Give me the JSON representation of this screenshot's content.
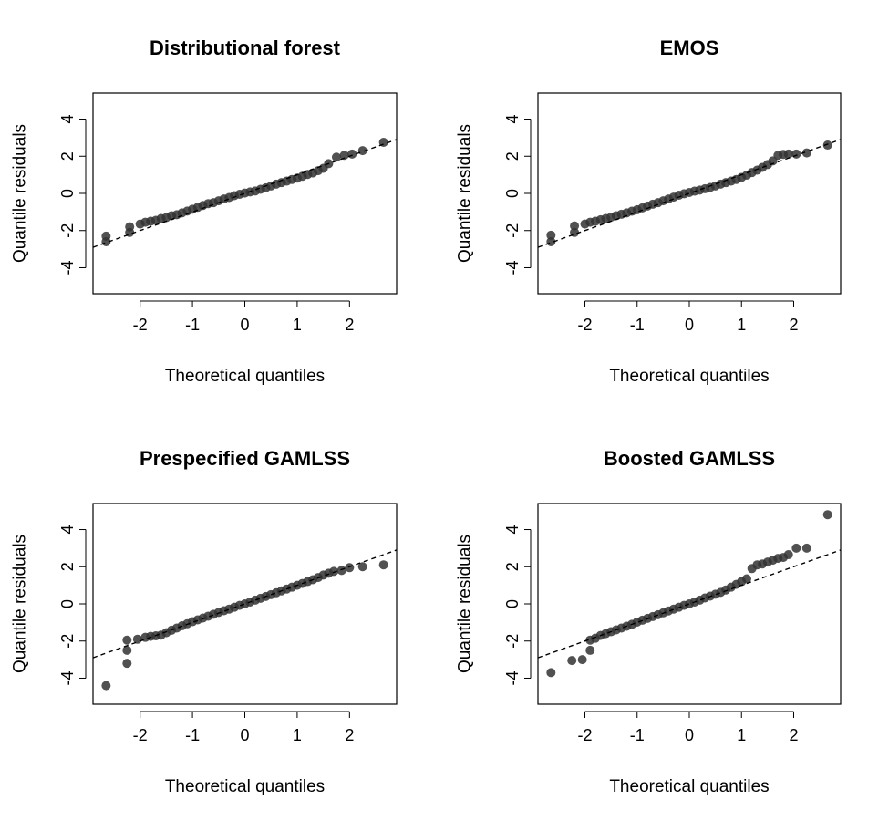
{
  "chart_data": [
    {
      "type": "scatter",
      "title": "Distributional forest",
      "xlabel": "Theoretical quantiles",
      "ylabel": "Quantile residuals",
      "xlim": [
        -2.9,
        2.9
      ],
      "ylim": [
        -5.4,
        5.4
      ],
      "xticks": [
        "-2",
        "-1",
        "0",
        "1",
        "2"
      ],
      "yticks": [
        "-4",
        "-2",
        "0",
        "2",
        "4"
      ],
      "reference_line": {
        "slope": 1.0,
        "intercept": 0.0
      },
      "series": [
        {
          "name": "residuals",
          "points": [
            [
              -2.65,
              -2.3
            ],
            [
              -2.65,
              -2.6
            ],
            [
              -2.2,
              -1.8
            ],
            [
              -2.2,
              -2.1
            ],
            [
              -2.0,
              -1.65
            ],
            [
              -1.9,
              -1.55
            ],
            [
              -1.8,
              -1.5
            ],
            [
              -1.7,
              -1.45
            ],
            [
              -1.6,
              -1.35
            ],
            [
              -1.5,
              -1.3
            ],
            [
              -1.4,
              -1.2
            ],
            [
              -1.3,
              -1.15
            ],
            [
              -1.2,
              -1.05
            ],
            [
              -1.1,
              -0.95
            ],
            [
              -1.0,
              -0.85
            ],
            [
              -0.9,
              -0.75
            ],
            [
              -0.8,
              -0.65
            ],
            [
              -0.7,
              -0.55
            ],
            [
              -0.6,
              -0.5
            ],
            [
              -0.5,
              -0.4
            ],
            [
              -0.4,
              -0.3
            ],
            [
              -0.3,
              -0.22
            ],
            [
              -0.2,
              -0.12
            ],
            [
              -0.1,
              -0.05
            ],
            [
              0.0,
              0.02
            ],
            [
              0.1,
              0.08
            ],
            [
              0.2,
              0.13
            ],
            [
              0.3,
              0.22
            ],
            [
              0.4,
              0.3
            ],
            [
              0.5,
              0.4
            ],
            [
              0.6,
              0.5
            ],
            [
              0.7,
              0.58
            ],
            [
              0.8,
              0.66
            ],
            [
              0.9,
              0.75
            ],
            [
              1.0,
              0.82
            ],
            [
              1.1,
              0.92
            ],
            [
              1.2,
              1.02
            ],
            [
              1.3,
              1.1
            ],
            [
              1.4,
              1.22
            ],
            [
              1.5,
              1.35
            ],
            [
              1.6,
              1.6
            ],
            [
              1.75,
              1.95
            ],
            [
              1.9,
              2.05
            ],
            [
              2.05,
              2.12
            ],
            [
              2.25,
              2.3
            ],
            [
              2.65,
              2.75
            ]
          ]
        }
      ]
    },
    {
      "type": "scatter",
      "title": "EMOS",
      "xlabel": "Theoretical quantiles",
      "ylabel": "Quantile residuals",
      "xlim": [
        -2.9,
        2.9
      ],
      "ylim": [
        -5.4,
        5.4
      ],
      "xticks": [
        "-2",
        "-1",
        "0",
        "1",
        "2"
      ],
      "yticks": [
        "-4",
        "-2",
        "0",
        "2",
        "4"
      ],
      "reference_line": {
        "slope": 1.0,
        "intercept": 0.0
      },
      "series": [
        {
          "name": "residuals",
          "points": [
            [
              -2.65,
              -2.25
            ],
            [
              -2.65,
              -2.6
            ],
            [
              -2.2,
              -1.75
            ],
            [
              -2.2,
              -2.1
            ],
            [
              -2.0,
              -1.65
            ],
            [
              -1.9,
              -1.55
            ],
            [
              -1.8,
              -1.5
            ],
            [
              -1.7,
              -1.42
            ],
            [
              -1.6,
              -1.35
            ],
            [
              -1.5,
              -1.28
            ],
            [
              -1.4,
              -1.2
            ],
            [
              -1.3,
              -1.12
            ],
            [
              -1.2,
              -1.05
            ],
            [
              -1.1,
              -0.96
            ],
            [
              -1.0,
              -0.88
            ],
            [
              -0.9,
              -0.78
            ],
            [
              -0.8,
              -0.68
            ],
            [
              -0.7,
              -0.58
            ],
            [
              -0.6,
              -0.5
            ],
            [
              -0.5,
              -0.4
            ],
            [
              -0.4,
              -0.3
            ],
            [
              -0.3,
              -0.2
            ],
            [
              -0.2,
              -0.1
            ],
            [
              -0.1,
              -0.02
            ],
            [
              0.0,
              0.05
            ],
            [
              0.1,
              0.12
            ],
            [
              0.2,
              0.18
            ],
            [
              0.3,
              0.25
            ],
            [
              0.4,
              0.32
            ],
            [
              0.5,
              0.4
            ],
            [
              0.6,
              0.5
            ],
            [
              0.7,
              0.58
            ],
            [
              0.8,
              0.66
            ],
            [
              0.9,
              0.75
            ],
            [
              1.0,
              0.86
            ],
            [
              1.1,
              0.98
            ],
            [
              1.2,
              1.12
            ],
            [
              1.3,
              1.25
            ],
            [
              1.4,
              1.4
            ],
            [
              1.5,
              1.55
            ],
            [
              1.6,
              1.75
            ],
            [
              1.7,
              2.05
            ],
            [
              1.8,
              2.1
            ],
            [
              1.9,
              2.12
            ],
            [
              2.05,
              2.12
            ],
            [
              2.25,
              2.18
            ],
            [
              2.65,
              2.6
            ]
          ]
        }
      ]
    },
    {
      "type": "scatter",
      "title": "Prespecified GAMLSS",
      "xlabel": "Theoretical quantiles",
      "ylabel": "Quantile residuals",
      "xlim": [
        -2.9,
        2.9
      ],
      "ylim": [
        -5.4,
        5.4
      ],
      "xticks": [
        "-2",
        "-1",
        "0",
        "1",
        "2"
      ],
      "yticks": [
        "-4",
        "-2",
        "0",
        "2",
        "4"
      ],
      "reference_line": {
        "slope": 1.0,
        "intercept": 0.0
      },
      "series": [
        {
          "name": "residuals",
          "points": [
            [
              -2.65,
              -4.4
            ],
            [
              -2.25,
              -1.95
            ],
            [
              -2.25,
              -2.5
            ],
            [
              -2.25,
              -3.2
            ],
            [
              -2.05,
              -1.9
            ],
            [
              -1.9,
              -1.8
            ],
            [
              -1.8,
              -1.75
            ],
            [
              -1.7,
              -1.72
            ],
            [
              -1.6,
              -1.68
            ],
            [
              -1.5,
              -1.55
            ],
            [
              -1.4,
              -1.42
            ],
            [
              -1.3,
              -1.3
            ],
            [
              -1.2,
              -1.18
            ],
            [
              -1.1,
              -1.07
            ],
            [
              -1.0,
              -0.96
            ],
            [
              -0.9,
              -0.86
            ],
            [
              -0.8,
              -0.76
            ],
            [
              -0.7,
              -0.66
            ],
            [
              -0.6,
              -0.56
            ],
            [
              -0.5,
              -0.46
            ],
            [
              -0.4,
              -0.37
            ],
            [
              -0.3,
              -0.28
            ],
            [
              -0.2,
              -0.18
            ],
            [
              -0.1,
              -0.08
            ],
            [
              0.0,
              0.0
            ],
            [
              0.1,
              0.1
            ],
            [
              0.2,
              0.2
            ],
            [
              0.3,
              0.3
            ],
            [
              0.4,
              0.4
            ],
            [
              0.5,
              0.5
            ],
            [
              0.6,
              0.6
            ],
            [
              0.7,
              0.7
            ],
            [
              0.8,
              0.8
            ],
            [
              0.9,
              0.9
            ],
            [
              1.0,
              1.0
            ],
            [
              1.1,
              1.1
            ],
            [
              1.2,
              1.2
            ],
            [
              1.3,
              1.3
            ],
            [
              1.4,
              1.42
            ],
            [
              1.5,
              1.55
            ],
            [
              1.6,
              1.65
            ],
            [
              1.7,
              1.75
            ],
            [
              1.85,
              1.8
            ],
            [
              2.0,
              1.95
            ],
            [
              2.25,
              2.0
            ],
            [
              2.65,
              2.1
            ]
          ]
        }
      ]
    },
    {
      "type": "scatter",
      "title": "Boosted GAMLSS",
      "xlabel": "Theoretical quantiles",
      "ylabel": "Quantile residuals",
      "xlim": [
        -2.9,
        2.9
      ],
      "ylim": [
        -5.4,
        5.4
      ],
      "xticks": [
        "-2",
        "-1",
        "0",
        "1",
        "2"
      ],
      "yticks": [
        "-4",
        "-2",
        "0",
        "2",
        "4"
      ],
      "reference_line": {
        "slope": 1.0,
        "intercept": 0.0
      },
      "series": [
        {
          "name": "residuals",
          "points": [
            [
              -2.65,
              -3.7
            ],
            [
              -2.25,
              -3.05
            ],
            [
              -2.05,
              -3.0
            ],
            [
              -1.9,
              -2.5
            ],
            [
              -1.9,
              -1.95
            ],
            [
              -1.8,
              -1.85
            ],
            [
              -1.7,
              -1.7
            ],
            [
              -1.6,
              -1.6
            ],
            [
              -1.5,
              -1.5
            ],
            [
              -1.4,
              -1.4
            ],
            [
              -1.3,
              -1.3
            ],
            [
              -1.2,
              -1.2
            ],
            [
              -1.1,
              -1.1
            ],
            [
              -1.0,
              -0.98
            ],
            [
              -0.9,
              -0.88
            ],
            [
              -0.8,
              -0.78
            ],
            [
              -0.7,
              -0.68
            ],
            [
              -0.6,
              -0.58
            ],
            [
              -0.5,
              -0.48
            ],
            [
              -0.4,
              -0.38
            ],
            [
              -0.3,
              -0.28
            ],
            [
              -0.2,
              -0.18
            ],
            [
              -0.1,
              -0.08
            ],
            [
              0.0,
              0.0
            ],
            [
              0.1,
              0.1
            ],
            [
              0.2,
              0.2
            ],
            [
              0.3,
              0.32
            ],
            [
              0.4,
              0.42
            ],
            [
              0.5,
              0.52
            ],
            [
              0.6,
              0.62
            ],
            [
              0.7,
              0.75
            ],
            [
              0.8,
              0.9
            ],
            [
              0.9,
              1.05
            ],
            [
              1.0,
              1.2
            ],
            [
              1.1,
              1.35
            ],
            [
              1.2,
              1.9
            ],
            [
              1.3,
              2.1
            ],
            [
              1.4,
              2.15
            ],
            [
              1.5,
              2.25
            ],
            [
              1.6,
              2.35
            ],
            [
              1.7,
              2.45
            ],
            [
              1.8,
              2.5
            ],
            [
              1.9,
              2.65
            ],
            [
              2.05,
              3.0
            ],
            [
              2.25,
              3.0
            ],
            [
              2.65,
              4.8
            ]
          ]
        }
      ]
    }
  ]
}
